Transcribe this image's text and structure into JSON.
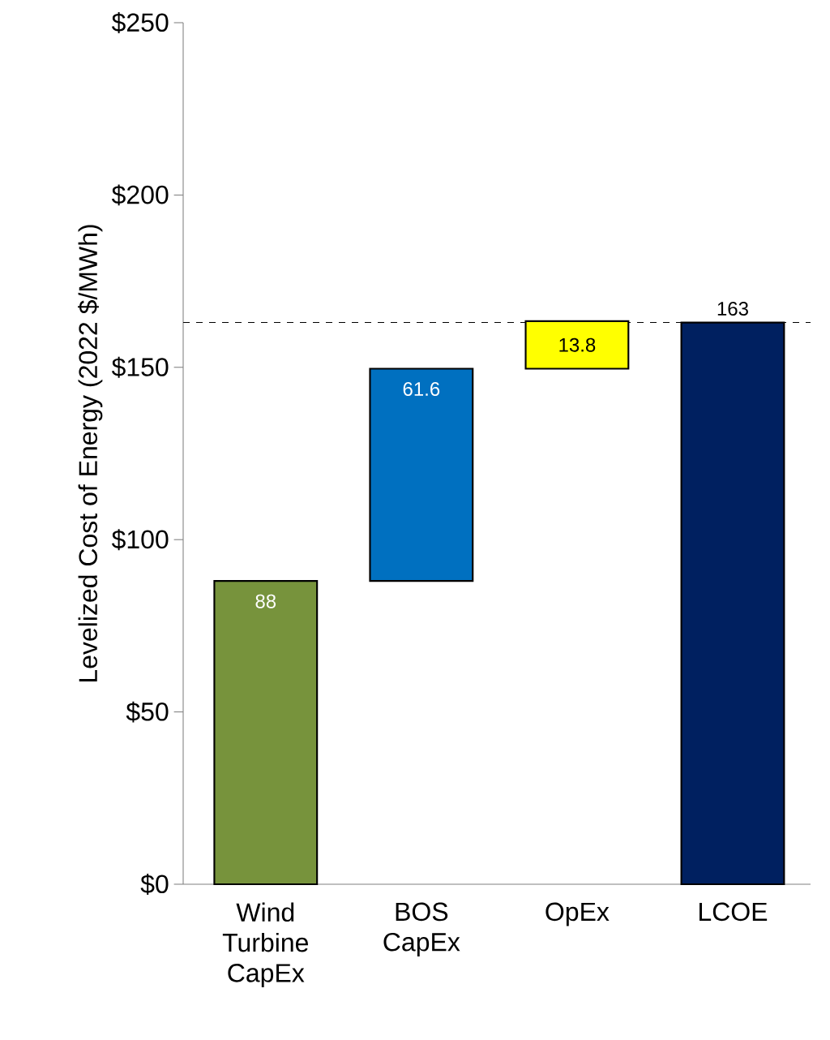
{
  "chart_data": {
    "type": "bar",
    "ylabel": "Levelized Cost of Energy (2022 $/MWh)",
    "categories": [
      "Wind Turbine CapEx",
      "BOS CapEx",
      "OpEx",
      "LCOE"
    ],
    "values": [
      88,
      61.6,
      13.8,
      163
    ],
    "base": [
      0,
      88,
      149.6,
      0
    ],
    "colors": [
      "#77933c",
      "#0070c0",
      "#ffff00",
      "#002060"
    ],
    "value_labels": [
      "88",
      "61.6",
      "13.8",
      "163"
    ],
    "ylim": [
      0,
      250
    ],
    "yticks": [
      {
        "value": 0,
        "label": "$0"
      },
      {
        "value": 50,
        "label": "$50"
      },
      {
        "value": 100,
        "label": "$100"
      },
      {
        "value": 150,
        "label": "$150"
      },
      {
        "value": 200,
        "label": "$200"
      },
      {
        "value": 250,
        "label": "$250"
      }
    ],
    "ref_lines": [
      {
        "axis": "y",
        "value": 163,
        "line_style": "dashed"
      }
    ],
    "grid": false
  }
}
